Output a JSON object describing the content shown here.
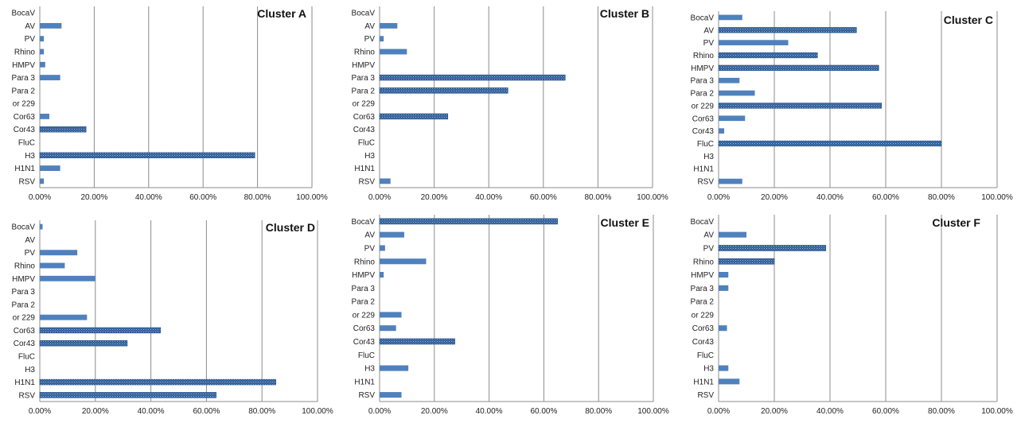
{
  "colors": {
    "bar_plain": "#4f81bd",
    "bar_textured": "#2e5b94",
    "grid": "#8c8c8c",
    "text": "#222222"
  },
  "x_tick_labels": [
    "0.00%",
    "20.00%",
    "40.00%",
    "60.00%",
    "80.00%",
    "100.00%"
  ],
  "chart_data": [
    {
      "type": "bar",
      "orientation": "horizontal",
      "title": "Cluster A",
      "xlim": [
        0,
        100
      ],
      "categories": [
        "BocaV",
        "AV",
        "PV",
        "Rhino",
        "HMPV",
        "Para 3",
        "Para 2",
        "or 229",
        "Cor63",
        "Cor43",
        "FluC",
        "H3",
        "H1N1",
        "RSV"
      ],
      "values": [
        0,
        8,
        1.5,
        1.5,
        2,
        7.5,
        0,
        0,
        3.5,
        17,
        0,
        79,
        7.5,
        1.5
      ],
      "textured": [
        false,
        false,
        false,
        false,
        false,
        false,
        false,
        false,
        false,
        true,
        false,
        true,
        false,
        false
      ]
    },
    {
      "type": "bar",
      "orientation": "horizontal",
      "title": "Cluster B",
      "xlim": [
        0,
        100
      ],
      "categories": [
        "BocaV",
        "AV",
        "PV",
        "Rhino",
        "HMPV",
        "Para 3",
        "Para 2",
        "or 229",
        "Cor63",
        "Cor43",
        "FluC",
        "H3",
        "H1N1",
        "RSV"
      ],
      "values": [
        0,
        6.5,
        1.5,
        10,
        0,
        68,
        47,
        0,
        25,
        0,
        0,
        0,
        0,
        4
      ],
      "textured": [
        false,
        false,
        false,
        false,
        false,
        true,
        true,
        false,
        true,
        false,
        false,
        false,
        false,
        false
      ]
    },
    {
      "type": "bar",
      "orientation": "horizontal",
      "title": "Cluster C",
      "xlim": [
        0,
        100
      ],
      "categories": [
        "BocaV",
        "AV",
        "PV",
        "Rhino",
        "HMPV",
        "Para 3",
        "Para 2",
        "or 229",
        "Cor63",
        "Cor43",
        "FluC",
        "H3",
        "H1N1",
        "RSV"
      ],
      "values": [
        8.5,
        49.5,
        25,
        35.5,
        57.5,
        7.5,
        13,
        58.5,
        9.5,
        2,
        80,
        0,
        0,
        8.5
      ],
      "textured": [
        false,
        true,
        false,
        true,
        true,
        false,
        false,
        true,
        false,
        false,
        true,
        false,
        false,
        false
      ]
    },
    {
      "type": "bar",
      "orientation": "horizontal",
      "title": "Cluster D",
      "xlim": [
        0,
        100
      ],
      "categories": [
        "BocaV",
        "AV",
        "PV",
        "Rhino",
        "HMPV",
        "Para 3",
        "Para 2",
        "or 229",
        "Cor63",
        "Cor43",
        "FluC",
        "H3",
        "H1N1",
        "RSV"
      ],
      "values": [
        1,
        0,
        13.5,
        9,
        20,
        0,
        0,
        17,
        43.5,
        31.5,
        0,
        0,
        85,
        63.5
      ],
      "textured": [
        false,
        false,
        false,
        false,
        false,
        false,
        false,
        false,
        true,
        true,
        false,
        false,
        true,
        true
      ]
    },
    {
      "type": "bar",
      "orientation": "horizontal",
      "title": "Cluster E",
      "xlim": [
        0,
        100
      ],
      "categories": [
        "BocaV",
        "AV",
        "PV",
        "Rhino",
        "HMPV",
        "Para 3",
        "Para 2",
        "or 229",
        "Cor63",
        "Cor43",
        "FluC",
        "H3",
        "H1N1",
        "RSV"
      ],
      "values": [
        65,
        9,
        2,
        17,
        1.5,
        0,
        0,
        8,
        6,
        27.5,
        0,
        10.5,
        0,
        8
      ],
      "textured": [
        true,
        false,
        false,
        false,
        false,
        false,
        false,
        false,
        false,
        true,
        false,
        false,
        false,
        false
      ]
    },
    {
      "type": "bar",
      "orientation": "horizontal",
      "title": "Cluster F",
      "xlim": [
        0,
        100
      ],
      "categories": [
        "BocaV",
        "AV",
        "PV",
        "Rhino",
        "HMPV",
        "Para 3",
        "Para 2",
        "or 229",
        "Cor63",
        "Cor43",
        "FluC",
        "H3",
        "H1N1",
        "RSV"
      ],
      "values": [
        0,
        10,
        38.5,
        20,
        3.5,
        3.5,
        0,
        0,
        3,
        0,
        0,
        3.5,
        7.5,
        0
      ],
      "textured": [
        false,
        false,
        true,
        true,
        false,
        false,
        false,
        false,
        false,
        false,
        false,
        false,
        false,
        false
      ]
    }
  ]
}
